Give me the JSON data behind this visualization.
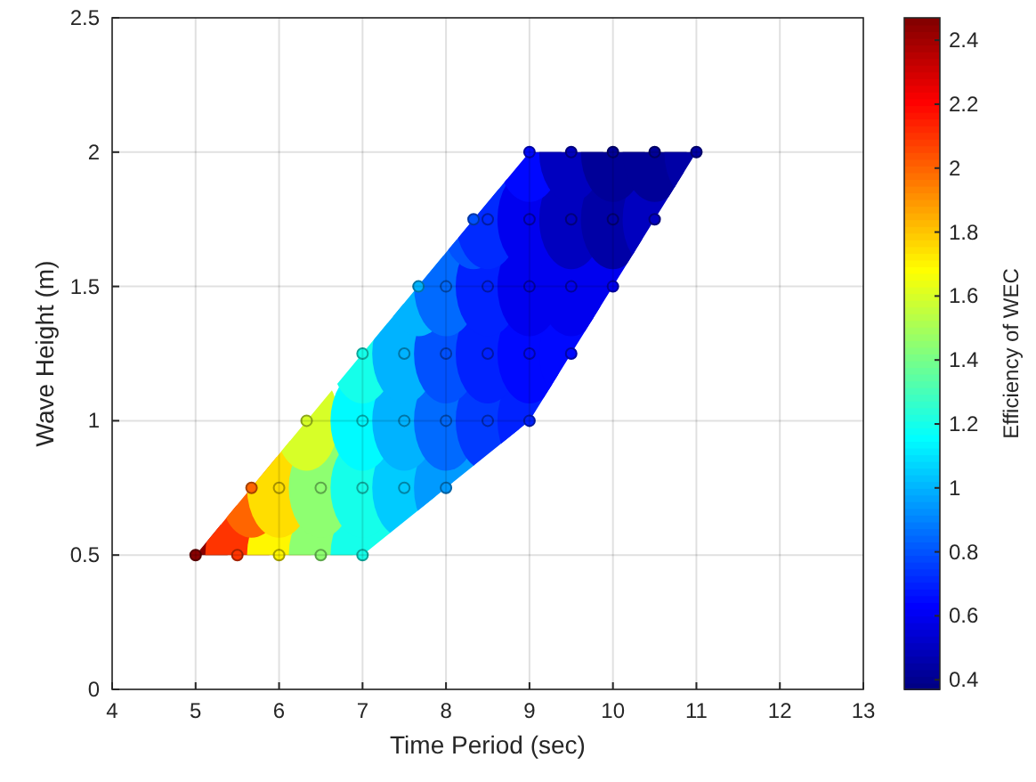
{
  "chart_data": {
    "type": "scatter",
    "xlabel": "Time Period (sec)",
    "ylabel": "Wave Height (m)",
    "clabel": "Efficiency of WEC",
    "xlim": [
      4,
      13
    ],
    "xticks": [
      4,
      5,
      6,
      7,
      8,
      9,
      10,
      11,
      12,
      13
    ],
    "ylim": [
      0,
      2.5
    ],
    "yticks": [
      0,
      0.5,
      1,
      1.5,
      2,
      2.5
    ],
    "grid": true,
    "clim": [
      0.37,
      2.47
    ],
    "cticks": [
      0.4,
      0.6,
      0.8,
      1,
      1.2,
      1.4,
      1.6,
      1.8,
      2,
      2.2,
      2.4
    ],
    "x": [
      5,
      5.5,
      6,
      6.5,
      7,
      5.67,
      6,
      6.5,
      7,
      7.5,
      8,
      6.33,
      7,
      7.5,
      8,
      8.5,
      9,
      7,
      7.5,
      8,
      8.5,
      9,
      9.5,
      7.67,
      8,
      8.5,
      9,
      9.5,
      10,
      8.33,
      8.5,
      9,
      9.5,
      10,
      10.5,
      9,
      9.5,
      10,
      10.5,
      11
    ],
    "values": [
      0.5,
      0.5,
      0.5,
      0.5,
      0.5,
      0.75,
      0.75,
      0.75,
      0.75,
      0.75,
      0.75,
      1,
      1,
      1,
      1,
      1,
      1,
      1.25,
      1.25,
      1.25,
      1.25,
      1.25,
      1.25,
      1.5,
      1.5,
      1.5,
      1.5,
      1.5,
      1.5,
      1.75,
      1.75,
      1.75,
      1.75,
      1.75,
      1.75,
      2,
      2,
      2,
      2,
      2
    ],
    "cvalues": [
      2.45,
      2.1,
      1.7,
      1.45,
      1.2,
      2.0,
      1.75,
      1.45,
      1.2,
      1.05,
      0.95,
      1.6,
      1.15,
      1.0,
      0.85,
      0.75,
      0.7,
      1.2,
      1.0,
      0.8,
      0.7,
      0.65,
      0.65,
      1.0,
      0.85,
      0.7,
      0.6,
      0.6,
      0.6,
      0.8,
      0.72,
      0.6,
      0.5,
      0.45,
      0.5,
      0.65,
      0.5,
      0.42,
      0.42,
      0.45
    ]
  }
}
